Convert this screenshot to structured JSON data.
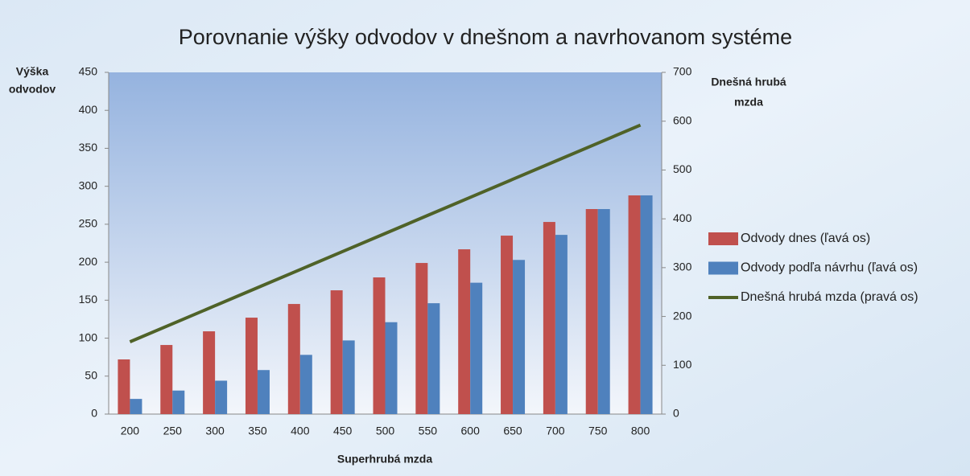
{
  "chart_data": {
    "type": "bar_line",
    "title": "Porovnanie výšky odvodov v dnešnom a navrhovanom systéme",
    "x_label": "Superhrubá mzda",
    "y_label": [
      "Výška",
      "odvodov"
    ],
    "y2_label": [
      "Dnešná hrubá",
      "mzda"
    ],
    "categories": [
      "200",
      "250",
      "300",
      "350",
      "400",
      "450",
      "500",
      "550",
      "600",
      "650",
      "700",
      "750",
      "800"
    ],
    "series": [
      {
        "name": "Odvody dnes (ľavá os)",
        "color": "#c0504d",
        "kind": "bar",
        "values": [
          72,
          91,
          109,
          127,
          145,
          163,
          180,
          199,
          217,
          235,
          253,
          270,
          288
        ]
      },
      {
        "name": "Odvody podľa návrhu (ľavá os)",
        "color": "#4f81bd",
        "kind": "bar",
        "values": [
          20,
          31,
          44,
          58,
          78,
          97,
          121,
          146,
          173,
          203,
          236,
          270,
          288
        ]
      },
      {
        "name": "Dnešná hrubá mzda (pravá os)",
        "color": "#4f6228",
        "kind": "line",
        "axis": "y2",
        "values": [
          148,
          185,
          222,
          259,
          296,
          333,
          370,
          407,
          444,
          481,
          518,
          555,
          592
        ]
      }
    ],
    "ylim": [
      0,
      450
    ],
    "yticks": [
      0,
      50,
      100,
      150,
      200,
      250,
      300,
      350,
      400,
      450
    ],
    "y2lim": [
      0,
      700
    ],
    "y2ticks": [
      0,
      100,
      200,
      300,
      400,
      500,
      600,
      700
    ],
    "legend": "right"
  }
}
